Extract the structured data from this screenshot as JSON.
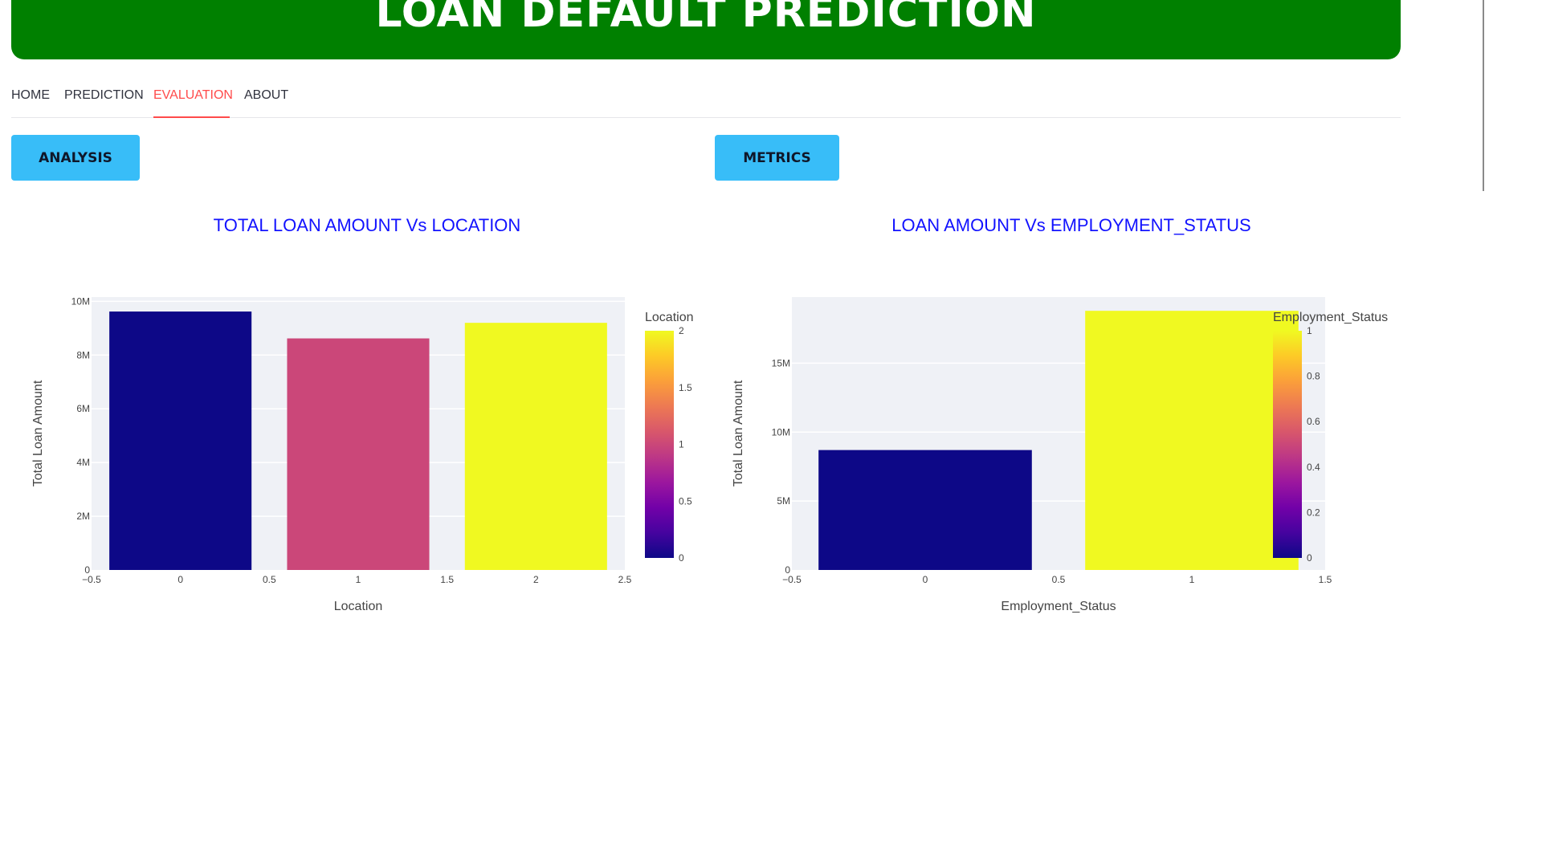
{
  "app": {
    "title": "LOAN DEFAULT PREDICTION"
  },
  "nav": {
    "tabs": [
      {
        "label": "HOME"
      },
      {
        "label": "PREDICTION"
      },
      {
        "label": "EVALUATION",
        "active": true
      },
      {
        "label": "ABOUT"
      }
    ]
  },
  "buttons": {
    "analysis": "ANALYSIS",
    "metrics": "METRICS"
  },
  "colors": {
    "banner": "#008000",
    "active_tab": "#ff4b4b",
    "button": "#38bdf8",
    "chart_title": "#1212ff"
  },
  "chart_data": [
    {
      "type": "bar",
      "title": "TOTAL LOAN AMOUNT Vs LOCATION",
      "xlabel": "Location",
      "ylabel": "Total Loan Amount",
      "x": [
        0,
        1,
        2
      ],
      "values": [
        9620000,
        8620000,
        9200000
      ],
      "xlim": [
        -0.5,
        2.5
      ],
      "ylim": [
        0,
        10160000
      ],
      "xticks": [
        "−0.5",
        "0",
        "0.5",
        "1",
        "1.5",
        "2",
        "2.5"
      ],
      "yticks": [
        "0",
        "2M",
        "4M",
        "6M",
        "8M",
        "10M"
      ],
      "colorbar": {
        "title": "Location",
        "range": [
          0,
          2
        ],
        "ticks": [
          "0",
          "0.5",
          "1",
          "1.5",
          "2"
        ]
      },
      "grid": true
    },
    {
      "type": "bar",
      "title": "LOAN AMOUNT Vs EMPLOYMENT_STATUS",
      "xlabel": "Employment_Status",
      "ylabel": "Total Loan Amount",
      "x": [
        0,
        1
      ],
      "values": [
        8700000,
        18800000
      ],
      "xlim": [
        -0.5,
        1.5
      ],
      "ylim": [
        0,
        19800000
      ],
      "xticks": [
        "−0.5",
        "0",
        "0.5",
        "1",
        "1.5"
      ],
      "yticks": [
        "0",
        "5M",
        "10M",
        "15M"
      ],
      "colorbar": {
        "title": "Employment_Status",
        "range": [
          0,
          1
        ],
        "ticks": [
          "0",
          "0.2",
          "0.4",
          "0.6",
          "0.8",
          "1"
        ]
      },
      "grid": true
    }
  ]
}
